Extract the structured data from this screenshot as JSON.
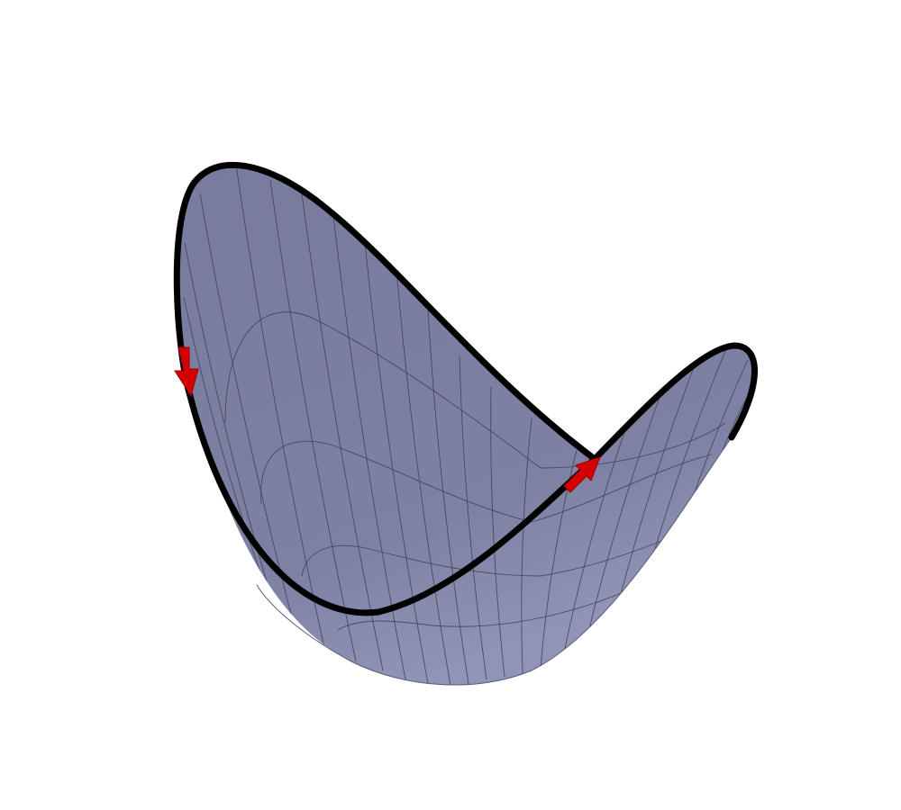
{
  "figure": {
    "surface_fill": "#787b9d",
    "surface_fill_light": "#8f93b3",
    "mesh_color": "#3e4055",
    "boundary_color": "#000000",
    "arrow_color": "#d40000"
  },
  "icons": {
    "arrow_left": "arrow-down-icon",
    "arrow_right": "arrow-up-right-icon"
  }
}
